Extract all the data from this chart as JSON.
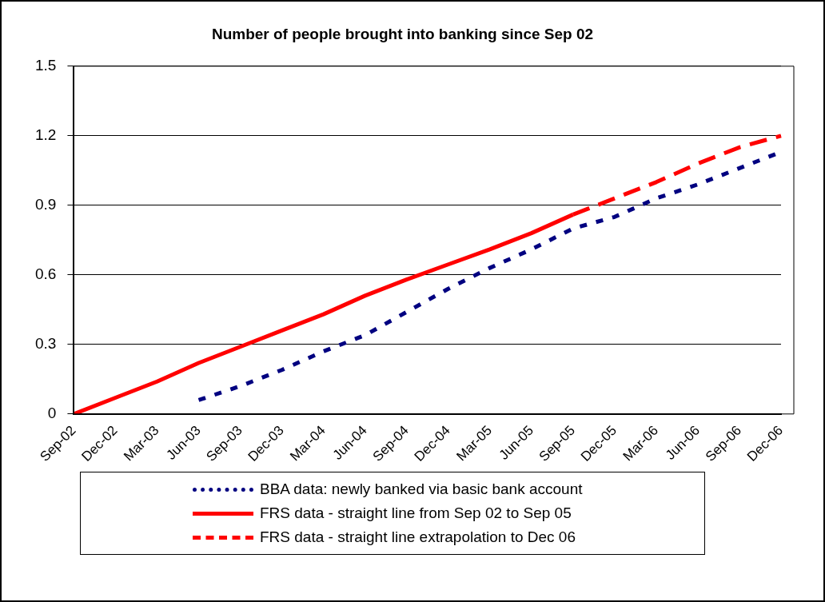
{
  "chart_data": {
    "type": "line",
    "title": "Number of people brought into banking since Sep 02",
    "categories": [
      "Sep-02",
      "Dec-02",
      "Mar-03",
      "Jun-03",
      "Sep-03",
      "Dec-03",
      "Mar-04",
      "Jun-04",
      "Sep-04",
      "Dec-04",
      "Mar-05",
      "Jun-05",
      "Sep-05",
      "Dec-05",
      "Mar-06",
      "Jun-06",
      "Sep-06",
      "Dec-06"
    ],
    "series": [
      {
        "name": "BBA data: newly banked via basic bank account",
        "color": "#000080",
        "line_style": "dotted",
        "values": [
          null,
          null,
          null,
          0.06,
          0.12,
          0.19,
          0.27,
          0.34,
          0.44,
          0.54,
          0.63,
          0.71,
          0.8,
          0.85,
          0.93,
          0.99,
          1.06,
          1.13
        ]
      },
      {
        "name": "FRS data - straight line from Sep 02 to Sep 05",
        "color": "#ff0000",
        "line_style": "solid",
        "values": [
          0,
          0.07,
          0.14,
          0.22,
          0.29,
          0.36,
          0.43,
          0.51,
          0.58,
          0.645,
          0.71,
          0.78,
          0.86,
          null,
          null,
          null,
          null,
          null
        ]
      },
      {
        "name": "FRS data - straight line extrapolation to Dec 06",
        "color": "#ff0000",
        "line_style": "dashed",
        "values": [
          null,
          null,
          null,
          null,
          null,
          null,
          null,
          null,
          null,
          null,
          null,
          null,
          0.86,
          0.93,
          1.0,
          1.08,
          1.15,
          1.2
        ]
      }
    ],
    "ylim": [
      0,
      1.5
    ],
    "yticks": [
      0,
      0.3,
      0.6,
      0.9,
      1.2,
      1.5
    ],
    "grid": "y",
    "legend": "bottom",
    "marker": "none"
  }
}
